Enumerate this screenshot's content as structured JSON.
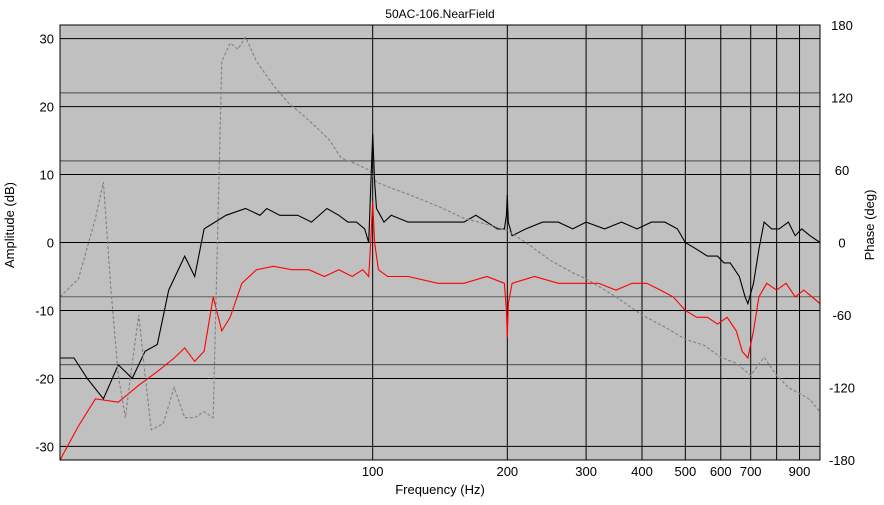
{
  "chart_data": {
    "type": "line",
    "title": "50AC-106.NearField",
    "xlabel": "Frequency (Hz)",
    "ylabel_left": "Amplitude (dB)",
    "ylabel_right": "Phase (deg)",
    "x_scale": "log",
    "xlim": [
      20,
      1000
    ],
    "ylim_left": [
      -32,
      32
    ],
    "ylim_right": [
      -180,
      180
    ],
    "grid": true,
    "colors": {
      "background": "#c0c0c0",
      "grid": "#000000"
    },
    "x_ticks": [
      {
        "value": 100,
        "label": "100"
      },
      {
        "value": 200,
        "label": "200"
      },
      {
        "value": 300,
        "label": "300"
      },
      {
        "value": 400,
        "label": "400"
      },
      {
        "value": 500,
        "label": "500"
      },
      {
        "value": 600,
        "label": "600"
      },
      {
        "value": 700,
        "label": "700"
      },
      {
        "value": 900,
        "label": "900"
      }
    ],
    "x_minor_grid": [
      800,
      1000
    ],
    "y_left_ticks": [
      30,
      20,
      10,
      0,
      -10,
      -20,
      -30
    ],
    "y_left_minor": [
      22,
      12,
      -8,
      -18
    ],
    "y_right_ticks": [
      180,
      120,
      60,
      0,
      -60,
      -120,
      -180
    ],
    "series": [
      {
        "axis": "left",
        "color": "#000000",
        "style": "solid",
        "points": [
          [
            20,
            -17
          ],
          [
            21.5,
            -17
          ],
          [
            23,
            -20
          ],
          [
            25,
            -23
          ],
          [
            27,
            -18
          ],
          [
            29,
            -20
          ],
          [
            31,
            -16
          ],
          [
            33,
            -15
          ],
          [
            35,
            -7
          ],
          [
            38,
            -2
          ],
          [
            40,
            -5
          ],
          [
            42,
            2
          ],
          [
            47,
            4
          ],
          [
            52,
            5
          ],
          [
            56,
            4
          ],
          [
            58,
            5
          ],
          [
            62,
            4
          ],
          [
            68,
            4
          ],
          [
            73,
            3
          ],
          [
            79,
            5
          ],
          [
            84,
            4
          ],
          [
            88,
            3
          ],
          [
            92,
            3
          ],
          [
            96,
            2
          ],
          [
            98,
            0
          ],
          [
            99,
            8
          ],
          [
            100,
            16
          ],
          [
            101,
            9
          ],
          [
            102,
            5
          ],
          [
            104,
            4
          ],
          [
            106,
            3
          ],
          [
            110,
            4
          ],
          [
            120,
            3
          ],
          [
            130,
            3
          ],
          [
            140,
            3
          ],
          [
            150,
            3
          ],
          [
            160,
            3
          ],
          [
            170,
            4
          ],
          [
            180,
            3
          ],
          [
            190,
            2
          ],
          [
            197,
            2
          ],
          [
            199,
            4
          ],
          [
            200,
            7
          ],
          [
            201,
            3
          ],
          [
            205,
            1
          ],
          [
            220,
            2
          ],
          [
            240,
            3
          ],
          [
            260,
            3
          ],
          [
            280,
            2
          ],
          [
            300,
            3
          ],
          [
            330,
            2
          ],
          [
            360,
            3
          ],
          [
            390,
            2
          ],
          [
            420,
            3
          ],
          [
            450,
            3
          ],
          [
            480,
            2
          ],
          [
            500,
            0
          ],
          [
            530,
            -1
          ],
          [
            560,
            -2
          ],
          [
            590,
            -2
          ],
          [
            610,
            -3
          ],
          [
            630,
            -3
          ],
          [
            660,
            -5
          ],
          [
            680,
            -8
          ],
          [
            690,
            -9
          ],
          [
            710,
            -6
          ],
          [
            730,
            -1
          ],
          [
            750,
            3
          ],
          [
            780,
            2
          ],
          [
            810,
            2
          ],
          [
            850,
            3
          ],
          [
            880,
            1
          ],
          [
            910,
            2
          ],
          [
            950,
            1
          ],
          [
            1000,
            0
          ]
        ]
      },
      {
        "axis": "left",
        "color": "#ff0000",
        "style": "solid",
        "points": [
          [
            20,
            -32
          ],
          [
            22,
            -27
          ],
          [
            24,
            -23
          ],
          [
            27,
            -23.5
          ],
          [
            30,
            -21
          ],
          [
            33,
            -19
          ],
          [
            36,
            -17
          ],
          [
            38,
            -15.5
          ],
          [
            40,
            -17.5
          ],
          [
            42,
            -16
          ],
          [
            44,
            -8
          ],
          [
            46,
            -13
          ],
          [
            48,
            -11
          ],
          [
            51,
            -6
          ],
          [
            55,
            -4
          ],
          [
            60,
            -3.5
          ],
          [
            66,
            -4
          ],
          [
            72,
            -4
          ],
          [
            78,
            -5
          ],
          [
            84,
            -4
          ],
          [
            90,
            -5
          ],
          [
            95,
            -4
          ],
          [
            98,
            -5
          ],
          [
            99,
            0
          ],
          [
            100,
            6
          ],
          [
            101,
            0
          ],
          [
            103,
            -4
          ],
          [
            108,
            -5
          ],
          [
            120,
            -5
          ],
          [
            140,
            -6
          ],
          [
            160,
            -6
          ],
          [
            180,
            -5
          ],
          [
            197,
            -6
          ],
          [
            199,
            -10
          ],
          [
            200,
            -14
          ],
          [
            201,
            -9
          ],
          [
            205,
            -6
          ],
          [
            230,
            -5
          ],
          [
            260,
            -6
          ],
          [
            290,
            -6
          ],
          [
            320,
            -6
          ],
          [
            350,
            -7
          ],
          [
            380,
            -6
          ],
          [
            410,
            -6
          ],
          [
            440,
            -7
          ],
          [
            470,
            -8
          ],
          [
            500,
            -10
          ],
          [
            530,
            -11
          ],
          [
            560,
            -11
          ],
          [
            590,
            -12
          ],
          [
            620,
            -11
          ],
          [
            650,
            -13
          ],
          [
            670,
            -16
          ],
          [
            690,
            -17
          ],
          [
            710,
            -13
          ],
          [
            730,
            -8
          ],
          [
            760,
            -6
          ],
          [
            800,
            -7
          ],
          [
            840,
            -6
          ],
          [
            880,
            -8
          ],
          [
            920,
            -7
          ],
          [
            960,
            -8
          ],
          [
            1000,
            -9
          ]
        ]
      },
      {
        "axis": "right",
        "color": "#808080",
        "style": "dashed",
        "points": [
          [
            20,
            -45
          ],
          [
            22,
            -30
          ],
          [
            24,
            20
          ],
          [
            25,
            50
          ],
          [
            26,
            -40
          ],
          [
            27,
            -110
          ],
          [
            28,
            -145
          ],
          [
            29,
            -100
          ],
          [
            30,
            -60
          ],
          [
            31,
            -110
          ],
          [
            32,
            -155
          ],
          [
            34,
            -150
          ],
          [
            36,
            -120
          ],
          [
            38,
            -145
          ],
          [
            40,
            -145
          ],
          [
            42,
            -140
          ],
          [
            44,
            -145
          ],
          [
            46,
            150
          ],
          [
            48,
            165
          ],
          [
            50,
            160
          ],
          [
            52,
            170
          ],
          [
            55,
            150
          ],
          [
            60,
            130
          ],
          [
            65,
            115
          ],
          [
            70,
            105
          ],
          [
            75,
            95
          ],
          [
            80,
            85
          ],
          [
            85,
            70
          ],
          [
            92,
            65
          ],
          [
            98,
            60
          ],
          [
            100,
            55
          ],
          [
            102,
            50
          ],
          [
            110,
            45
          ],
          [
            120,
            40
          ],
          [
            140,
            30
          ],
          [
            160,
            20
          ],
          [
            180,
            15
          ],
          [
            200,
            10
          ],
          [
            220,
            0
          ],
          [
            250,
            -15
          ],
          [
            280,
            -25
          ],
          [
            300,
            -30
          ],
          [
            350,
            -45
          ],
          [
            400,
            -60
          ],
          [
            450,
            -70
          ],
          [
            500,
            -80
          ],
          [
            550,
            -85
          ],
          [
            600,
            -95
          ],
          [
            650,
            -100
          ],
          [
            700,
            -110
          ],
          [
            750,
            -95
          ],
          [
            800,
            -110
          ],
          [
            850,
            -120
          ],
          [
            900,
            -125
          ],
          [
            950,
            -130
          ],
          [
            1000,
            -140
          ]
        ]
      }
    ]
  }
}
